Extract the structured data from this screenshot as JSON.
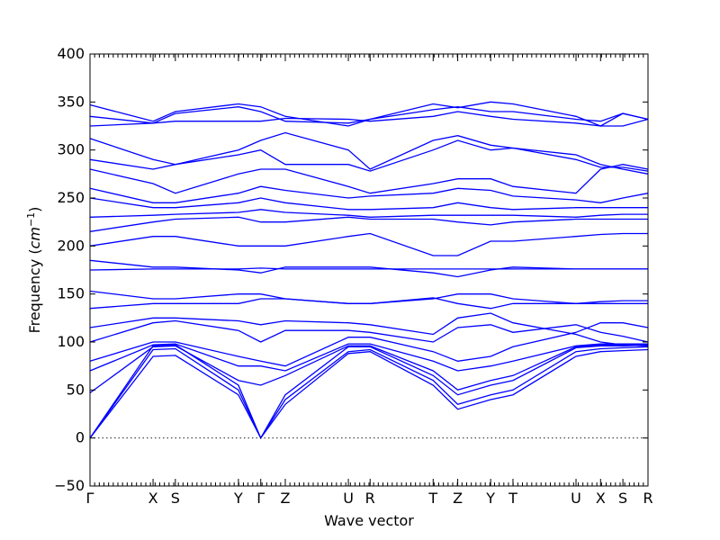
{
  "chart_data": {
    "type": "line",
    "xlabel": "Wave vector",
    "ylabel": "Frequency (",
    "ylabel_unit": "cm",
    "ylabel_exp": "−1",
    "ylabel_close": ")",
    "ylim": [
      -50,
      400
    ],
    "yticks": [
      -50,
      0,
      50,
      100,
      150,
      200,
      250,
      300,
      350,
      400
    ],
    "xlim": [
      0,
      1
    ],
    "high_symmetry_points": [
      {
        "label": "Γ",
        "x": 0.0
      },
      {
        "label": "X",
        "x": 0.113
      },
      {
        "label": "S",
        "x": 0.153
      },
      {
        "label": "Y",
        "x": 0.266
      },
      {
        "label": "Γ",
        "x": 0.306
      },
      {
        "label": "Z",
        "x": 0.35
      },
      {
        "label": "U",
        "x": 0.463
      },
      {
        "label": "R",
        "x": 0.502
      },
      {
        "label": "T",
        "x": 0.615
      },
      {
        "label": "Z",
        "x": 0.659
      },
      {
        "label": "Y",
        "x": 0.718
      },
      {
        "label": "T",
        "x": 0.758
      },
      {
        "label": "U",
        "x": 0.871
      },
      {
        "label": "X",
        "x": 0.915
      },
      {
        "label": "S",
        "x": 0.955
      },
      {
        "label": "R",
        "x": 1.0
      }
    ],
    "zero_line": true,
    "series_color": "#0000ff",
    "series": [
      {
        "x": [
          0,
          0.113,
          0.153,
          0.266,
          0.306,
          0.35,
          0.463,
          0.502,
          0.615,
          0.659,
          0.718,
          0.758,
          0.871,
          0.915,
          0.955,
          1.0
        ],
        "values": [
          0,
          85,
          86,
          45,
          0,
          35,
          88,
          90,
          55,
          30,
          40,
          45,
          85,
          90,
          91,
          92
        ]
      },
      {
        "x": [
          0,
          0.113,
          0.153,
          0.266,
          0.306,
          0.35,
          0.463,
          0.502,
          0.615,
          0.659,
          0.718,
          0.758,
          0.871,
          0.915,
          0.955,
          1.0
        ],
        "values": [
          0,
          92,
          93,
          50,
          0,
          40,
          90,
          92,
          60,
          35,
          45,
          50,
          90,
          93,
          94,
          95
        ]
      },
      {
        "x": [
          0,
          0.113,
          0.153,
          0.266,
          0.306,
          0.35,
          0.463,
          0.502,
          0.615,
          0.659,
          0.718,
          0.758,
          0.871,
          0.915,
          0.955,
          1.0
        ],
        "values": [
          0,
          96,
          97,
          55,
          0,
          45,
          95,
          95,
          65,
          45,
          55,
          60,
          94,
          96,
          96,
          97
        ]
      },
      {
        "x": [
          0,
          0.113,
          0.153,
          0.266,
          0.306,
          0.35,
          0.463,
          0.502,
          0.615,
          0.659,
          0.718,
          0.758,
          0.871,
          0.915,
          0.955,
          1.0
        ],
        "values": [
          47,
          95,
          96,
          60,
          55,
          65,
          96,
          96,
          70,
          50,
          60,
          65,
          95,
          97,
          97,
          98
        ]
      },
      {
        "x": [
          0,
          0.113,
          0.153,
          0.266,
          0.306,
          0.35,
          0.463,
          0.502,
          0.615,
          0.659,
          0.718,
          0.758,
          0.871,
          0.915,
          0.955,
          1.0
        ],
        "values": [
          70,
          97,
          98,
          75,
          75,
          70,
          98,
          98,
          80,
          70,
          75,
          80,
          96,
          98,
          98,
          98
        ]
      },
      {
        "x": [
          0,
          0.113,
          0.153,
          0.266,
          0.306,
          0.35,
          0.463,
          0.502,
          0.615,
          0.659,
          0.718,
          0.758,
          0.871,
          0.915,
          0.955,
          1.0
        ],
        "values": [
          80,
          100,
          100,
          85,
          80,
          75,
          105,
          105,
          90,
          80,
          85,
          95,
          110,
          120,
          120,
          115
        ]
      },
      {
        "x": [
          0,
          0.113,
          0.153,
          0.266,
          0.306,
          0.35,
          0.463,
          0.502,
          0.615,
          0.659,
          0.718,
          0.758,
          0.871,
          0.915,
          0.955,
          1.0
        ],
        "values": [
          100,
          120,
          122,
          112,
          100,
          112,
          112,
          110,
          100,
          115,
          118,
          110,
          118,
          110,
          106,
          100
        ]
      },
      {
        "x": [
          0,
          0.113,
          0.153,
          0.266,
          0.306,
          0.35,
          0.463,
          0.502,
          0.615,
          0.659,
          0.718,
          0.758,
          0.871,
          0.915,
          0.955,
          1.0
        ],
        "values": [
          115,
          125,
          125,
          122,
          118,
          122,
          120,
          118,
          108,
          125,
          130,
          120,
          108,
          100,
          97,
          96
        ]
      },
      {
        "x": [
          0,
          0.113,
          0.153,
          0.266,
          0.306,
          0.35,
          0.463,
          0.502,
          0.615,
          0.659,
          0.718,
          0.758,
          0.871,
          0.915,
          0.955,
          1.0
        ],
        "values": [
          135,
          140,
          140,
          140,
          145,
          145,
          140,
          140,
          145,
          150,
          150,
          145,
          140,
          140,
          140,
          140
        ]
      },
      {
        "x": [
          0,
          0.113,
          0.153,
          0.266,
          0.306,
          0.35,
          0.463,
          0.502,
          0.615,
          0.659,
          0.718,
          0.758,
          0.871,
          0.915,
          0.955,
          1.0
        ],
        "values": [
          153,
          145,
          145,
          150,
          150,
          145,
          140,
          140,
          146,
          140,
          135,
          140,
          140,
          142,
          143,
          143
        ]
      },
      {
        "x": [
          0,
          0.113,
          0.153,
          0.266,
          0.306,
          0.35,
          0.463,
          0.502,
          0.615,
          0.659,
          0.718,
          0.758,
          0.871,
          0.915,
          0.955,
          1.0
        ],
        "values": [
          175,
          176,
          176,
          176,
          177,
          176,
          176,
          176,
          176,
          176,
          176,
          176,
          176,
          176,
          176,
          176
        ]
      },
      {
        "x": [
          0,
          0.113,
          0.153,
          0.266,
          0.306,
          0.35,
          0.463,
          0.502,
          0.615,
          0.659,
          0.718,
          0.758,
          0.871,
          0.915,
          0.955,
          1.0
        ],
        "values": [
          185,
          178,
          178,
          175,
          172,
          178,
          178,
          178,
          172,
          168,
          175,
          178,
          176,
          176,
          176,
          176
        ]
      },
      {
        "x": [
          0,
          0.113,
          0.153,
          0.266,
          0.306,
          0.35,
          0.463,
          0.502,
          0.615,
          0.659,
          0.718,
          0.758,
          0.871,
          0.915,
          0.955,
          1.0
        ],
        "values": [
          200,
          210,
          210,
          200,
          200,
          200,
          210,
          213,
          190,
          190,
          205,
          205,
          210,
          212,
          213,
          213
        ]
      },
      {
        "x": [
          0,
          0.113,
          0.153,
          0.266,
          0.306,
          0.35,
          0.463,
          0.502,
          0.615,
          0.659,
          0.718,
          0.758,
          0.871,
          0.915,
          0.955,
          1.0
        ],
        "values": [
          215,
          225,
          228,
          230,
          225,
          225,
          230,
          228,
          228,
          225,
          222,
          225,
          228,
          228,
          228,
          228
        ]
      },
      {
        "x": [
          0,
          0.113,
          0.153,
          0.266,
          0.306,
          0.35,
          0.463,
          0.502,
          0.615,
          0.659,
          0.718,
          0.758,
          0.871,
          0.915,
          0.955,
          1.0
        ],
        "values": [
          230,
          232,
          233,
          235,
          238,
          235,
          232,
          230,
          232,
          232,
          232,
          232,
          230,
          232,
          233,
          233
        ]
      },
      {
        "x": [
          0,
          0.113,
          0.153,
          0.266,
          0.306,
          0.35,
          0.463,
          0.502,
          0.615,
          0.659,
          0.718,
          0.758,
          0.871,
          0.915,
          0.955,
          1.0
        ],
        "values": [
          250,
          240,
          240,
          245,
          250,
          245,
          238,
          238,
          240,
          245,
          240,
          238,
          240,
          240,
          240,
          240
        ]
      },
      {
        "x": [
          0,
          0.113,
          0.153,
          0.266,
          0.306,
          0.35,
          0.463,
          0.502,
          0.615,
          0.659,
          0.718,
          0.758,
          0.871,
          0.915,
          0.955,
          1.0
        ],
        "values": [
          260,
          245,
          245,
          255,
          262,
          258,
          250,
          252,
          255,
          260,
          258,
          252,
          248,
          245,
          250,
          255
        ]
      },
      {
        "x": [
          0,
          0.113,
          0.153,
          0.266,
          0.306,
          0.35,
          0.463,
          0.502,
          0.615,
          0.659,
          0.718,
          0.758,
          0.871,
          0.915,
          0.955,
          1.0
        ],
        "values": [
          280,
          265,
          255,
          275,
          280,
          280,
          262,
          255,
          265,
          270,
          270,
          262,
          255,
          280,
          285,
          280
        ]
      },
      {
        "x": [
          0,
          0.113,
          0.153,
          0.266,
          0.306,
          0.35,
          0.463,
          0.502,
          0.615,
          0.659,
          0.718,
          0.758,
          0.871,
          0.915,
          0.955,
          1.0
        ],
        "values": [
          290,
          280,
          285,
          295,
          300,
          285,
          285,
          278,
          300,
          310,
          300,
          302,
          295,
          285,
          280,
          275
        ]
      },
      {
        "x": [
          0,
          0.113,
          0.153,
          0.266,
          0.306,
          0.35,
          0.463,
          0.502,
          0.615,
          0.659,
          0.718,
          0.758,
          0.871,
          0.915,
          0.955,
          1.0
        ],
        "values": [
          312,
          290,
          285,
          300,
          310,
          318,
          300,
          280,
          310,
          315,
          305,
          302,
          290,
          282,
          282,
          278
        ]
      },
      {
        "x": [
          0,
          0.113,
          0.153,
          0.266,
          0.306,
          0.35,
          0.463,
          0.502,
          0.615,
          0.659,
          0.718,
          0.758,
          0.871,
          0.915,
          0.955,
          1.0
        ],
        "values": [
          325,
          328,
          338,
          345,
          340,
          330,
          328,
          332,
          342,
          345,
          340,
          340,
          332,
          330,
          338,
          332
        ]
      },
      {
        "x": [
          0,
          0.113,
          0.153,
          0.266,
          0.306,
          0.35,
          0.463,
          0.502,
          0.615,
          0.659,
          0.718,
          0.758,
          0.871,
          0.915,
          0.955,
          1.0
        ],
        "values": [
          335,
          328,
          330,
          330,
          330,
          333,
          332,
          330,
          335,
          340,
          335,
          332,
          328,
          325,
          325,
          332
        ]
      },
      {
        "x": [
          0,
          0.113,
          0.153,
          0.266,
          0.306,
          0.35,
          0.463,
          0.502,
          0.615,
          0.659,
          0.718,
          0.758,
          0.871,
          0.915,
          0.955,
          1.0
        ],
        "values": [
          347,
          330,
          340,
          348,
          345,
          335,
          325,
          332,
          348,
          344,
          350,
          348,
          335,
          325,
          338,
          332
        ]
      }
    ]
  }
}
